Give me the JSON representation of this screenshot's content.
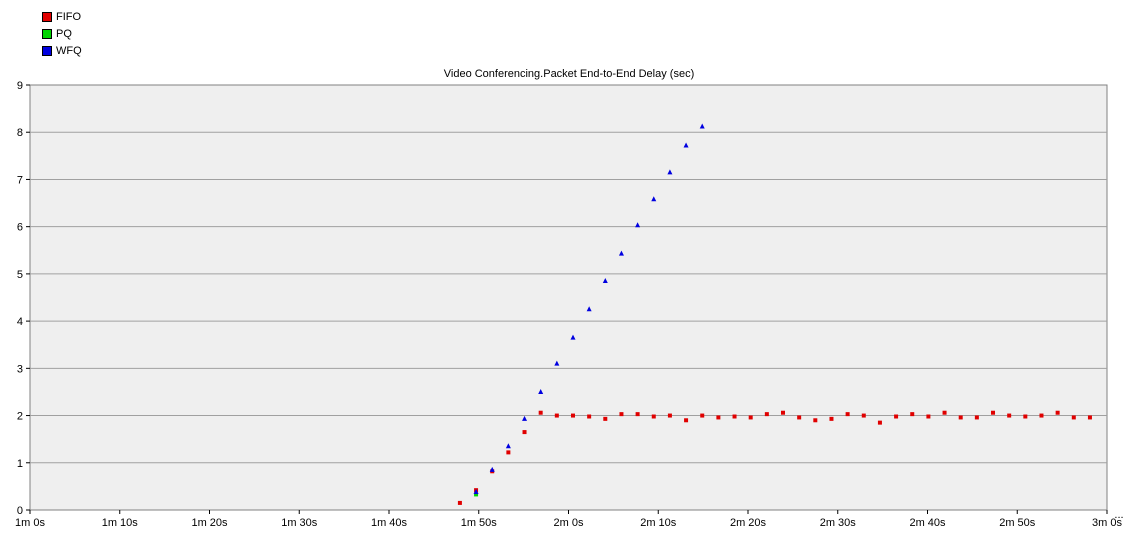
{
  "legend": [
    {
      "name": "FIFO",
      "color": "#e00000"
    },
    {
      "name": "PQ",
      "color": "#00d400"
    },
    {
      "name": "WFQ",
      "color": "#0000e0"
    }
  ],
  "chart_data": {
    "type": "scatter",
    "title": "Video Conferencing.Packet End-to-End Delay (sec)",
    "xlabel": "",
    "ylabel": "",
    "x_unit": "seconds",
    "xlim": [
      60,
      180
    ],
    "ylim": [
      0,
      9
    ],
    "x_ticks": [
      {
        "value": 60,
        "label": "1m 0s"
      },
      {
        "value": 70,
        "label": "1m 10s"
      },
      {
        "value": 80,
        "label": "1m 20s"
      },
      {
        "value": 90,
        "label": "1m 30s"
      },
      {
        "value": 100,
        "label": "1m 40s"
      },
      {
        "value": 110,
        "label": "1m 50s"
      },
      {
        "value": 120,
        "label": "2m 0s"
      },
      {
        "value": 130,
        "label": "2m 10s"
      },
      {
        "value": 140,
        "label": "2m 20s"
      },
      {
        "value": 150,
        "label": "2m 30s"
      },
      {
        "value": 160,
        "label": "2m 40s"
      },
      {
        "value": 170,
        "label": "2m 50s"
      },
      {
        "value": 180,
        "label": "3m 0s"
      }
    ],
    "y_ticks": [
      {
        "value": 0,
        "label": "0"
      },
      {
        "value": 1,
        "label": "1"
      },
      {
        "value": 2,
        "label": "2"
      },
      {
        "value": 3,
        "label": "3"
      },
      {
        "value": 4,
        "label": "4"
      },
      {
        "value": 5,
        "label": "5"
      },
      {
        "value": 6,
        "label": "6"
      },
      {
        "value": 7,
        "label": "7"
      },
      {
        "value": 8,
        "label": "8"
      },
      {
        "value": 9,
        "label": "9"
      }
    ],
    "grid": true,
    "legend_position": "top-left",
    "series": [
      {
        "name": "FIFO",
        "color": "#e00000",
        "marker": "square",
        "points": [
          [
            107.9,
            0.15
          ],
          [
            109.7,
            0.42
          ],
          [
            111.5,
            0.82
          ],
          [
            113.3,
            1.22
          ],
          [
            115.1,
            1.65
          ],
          [
            116.9,
            2.06
          ],
          [
            118.7,
            2.0
          ],
          [
            120.5,
            2.0
          ],
          [
            122.3,
            1.98
          ],
          [
            124.1,
            1.93
          ],
          [
            125.9,
            2.03
          ],
          [
            127.7,
            2.03
          ],
          [
            129.5,
            1.98
          ],
          [
            131.3,
            2.0
          ],
          [
            133.1,
            1.9
          ],
          [
            134.9,
            2.0
          ],
          [
            136.7,
            1.96
          ],
          [
            138.5,
            1.98
          ],
          [
            140.3,
            1.96
          ],
          [
            142.1,
            2.03
          ],
          [
            143.9,
            2.06
          ],
          [
            145.7,
            1.96
          ],
          [
            147.5,
            1.9
          ],
          [
            149.3,
            1.93
          ],
          [
            151.1,
            2.03
          ],
          [
            152.9,
            2.0
          ],
          [
            154.7,
            1.85
          ],
          [
            156.5,
            1.98
          ],
          [
            158.3,
            2.03
          ],
          [
            160.1,
            1.98
          ],
          [
            161.9,
            2.06
          ],
          [
            163.7,
            1.96
          ],
          [
            165.5,
            1.96
          ],
          [
            167.3,
            2.06
          ],
          [
            169.1,
            2.0
          ],
          [
            170.9,
            1.98
          ],
          [
            172.7,
            2.0
          ],
          [
            174.5,
            2.06
          ],
          [
            176.3,
            1.96
          ],
          [
            178.1,
            1.96
          ]
        ]
      },
      {
        "name": "PQ",
        "color": "#00d400",
        "marker": "square",
        "points": [
          [
            109.7,
            0.33
          ]
        ]
      },
      {
        "name": "WFQ",
        "color": "#0000e0",
        "marker": "triangle",
        "points": [
          [
            109.7,
            0.38
          ],
          [
            111.5,
            0.85
          ],
          [
            113.3,
            1.35
          ],
          [
            115.1,
            1.93
          ],
          [
            116.9,
            2.5
          ],
          [
            118.7,
            3.1
          ],
          [
            120.5,
            3.65
          ],
          [
            122.3,
            4.25
          ],
          [
            124.1,
            4.85
          ],
          [
            125.9,
            5.43
          ],
          [
            127.7,
            6.03
          ],
          [
            129.5,
            6.58
          ],
          [
            131.3,
            7.15
          ],
          [
            133.1,
            7.72
          ],
          [
            134.9,
            8.12
          ]
        ]
      }
    ]
  }
}
